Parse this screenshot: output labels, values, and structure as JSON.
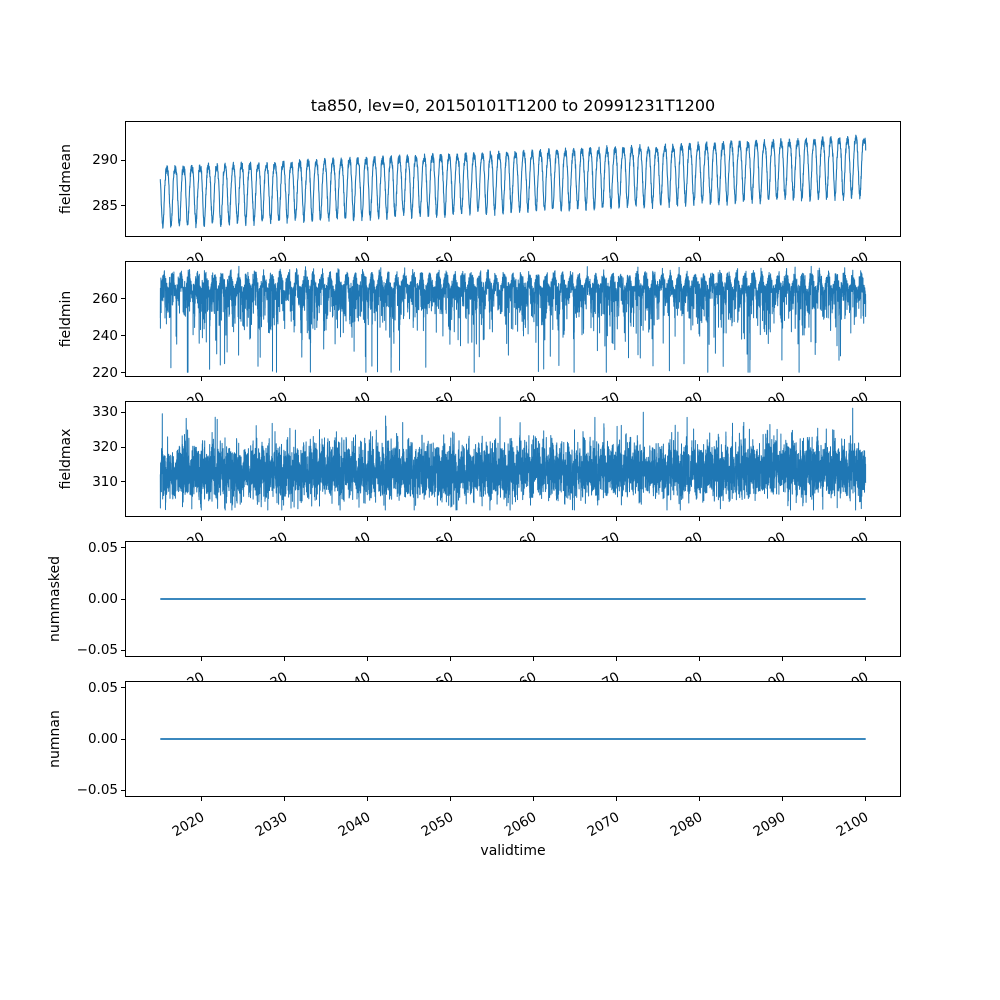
{
  "figure": {
    "title": "ta850, lev=0, 20150101T1200 to 20991231T1200",
    "background": "#ffffff",
    "line_color": "#1f77b4"
  },
  "x_axis": {
    "label": "validtime",
    "xlim": [
      2010.75,
      2104.25
    ],
    "data_range": [
      2015,
      2100
    ],
    "tick_values": [
      2020,
      2030,
      2040,
      2050,
      2060,
      2070,
      2080,
      2090,
      2100
    ],
    "tick_labels": [
      "2020",
      "2030",
      "2040",
      "2050",
      "2060",
      "2070",
      "2080",
      "2090",
      "2100"
    ],
    "tick_rotation_deg": 30
  },
  "chart_data": [
    {
      "id": "fieldmean",
      "type": "line",
      "ylabel": "fieldmean",
      "ylim": [
        281.6,
        294.3
      ],
      "ytick_values": [
        285,
        290
      ],
      "ytick_labels": [
        "285",
        "290"
      ],
      "line_width": 1.1,
      "summary": "Annual cycle ~7K peak-to-peak rising from ~282.5-290.5 in 2015 to ~285.7-293.8 in 2100",
      "gen": {
        "kind": "seasonal_trend",
        "n": 4200,
        "seed": 11,
        "base_start": 286.5,
        "base_end": 289.8,
        "seasonal_amp": 3.1,
        "seasonal_phase": 0.55,
        "harmonic_amp": 0.55,
        "harmonic_phase": 1.0,
        "noise_amp": 0.45
      }
    },
    {
      "id": "fieldmin",
      "type": "line",
      "ylabel": "fieldmin",
      "ylim": [
        217.8,
        280.2
      ],
      "ytick_values": [
        220,
        240,
        260
      ],
      "ytick_labels": [
        "220",
        "240",
        "260"
      ],
      "line_width": 1.0,
      "summary": "Dense band ~255-277 with frequent downward spikes, deepest dips ~220-225 throughout 2015-2100",
      "gen": {
        "kind": "spikes_down",
        "n": 8000,
        "seed": 22,
        "base": 266.8,
        "seasonal_amp": 4.2,
        "seasonal_phase": 0.2,
        "noise_sd": 2.3,
        "spike_prob": 0.3,
        "spike_scale": 8.5,
        "clamp_min": 220.4,
        "clamp_max": 277.3
      }
    },
    {
      "id": "fieldmax",
      "type": "line",
      "ylabel": "fieldmax",
      "ylim": [
        299.9,
        333.2
      ],
      "ytick_values": [
        310,
        320,
        330
      ],
      "ytick_labels": [
        "310",
        "320",
        "330"
      ],
      "line_width": 1.0,
      "summary": "Dense noise band ~305-325 centered near 313, upward spikes to ~331, lows ~302, roughly stationary",
      "gen": {
        "kind": "spikes_up",
        "n": 8000,
        "seed": 33,
        "base": 312.4,
        "trend": 0.9,
        "seasonal_amp": 1.3,
        "noise_sd": 3.7,
        "spike_prob": 0.05,
        "spike_max": 10,
        "clamp_min": 301.9,
        "clamp_max": 331.2
      }
    },
    {
      "id": "nummasked",
      "type": "line",
      "ylabel": "nummasked",
      "ylim": [
        -0.0567,
        0.0567
      ],
      "ytick_values": [
        -0.05,
        0,
        0.05
      ],
      "ytick_labels": [
        "−0.05",
        "0.00",
        "0.05"
      ],
      "line_width": 1.8,
      "summary": "Constant 0.00 from 2015 to 2100",
      "gen": {
        "kind": "constant",
        "value": 0
      }
    },
    {
      "id": "numnan",
      "type": "line",
      "ylabel": "numnan",
      "ylim": [
        -0.0567,
        0.0567
      ],
      "ytick_values": [
        -0.05,
        0,
        0.05
      ],
      "ytick_labels": [
        "−0.05",
        "0.00",
        "0.05"
      ],
      "line_width": 1.8,
      "summary": "Constant 0.00 from 2015 to 2100",
      "gen": {
        "kind": "constant",
        "value": 0
      }
    }
  ]
}
